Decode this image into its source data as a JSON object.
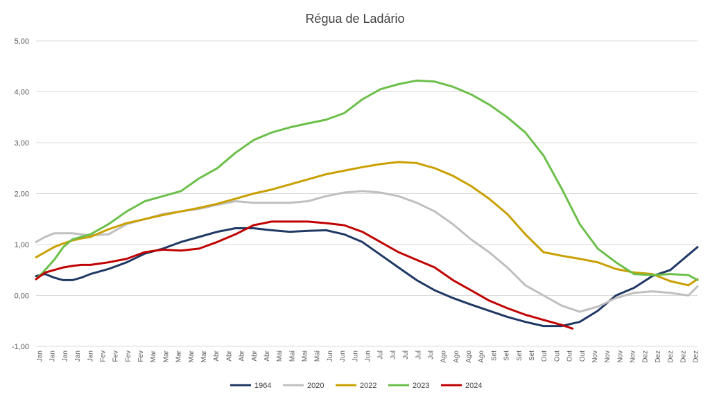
{
  "chart_data": {
    "type": "line",
    "title": "Régua de Ladário",
    "xlabel": "",
    "ylabel": "",
    "ylim": [
      -1,
      5
    ],
    "yticks": [
      "-1,00",
      "0,00",
      "1,00",
      "2,00",
      "3,00",
      "4,00",
      "5,00"
    ],
    "ytick_values": [
      -1,
      0,
      1,
      2,
      3,
      4,
      5
    ],
    "xlim": [
      0,
      365
    ],
    "x_tick_labels": [
      "Jan",
      "Jan",
      "Jan",
      "Jan",
      "Jan",
      "Fev",
      "Fev",
      "Fev",
      "Fev",
      "Mar",
      "Mar",
      "Mar",
      "Mar",
      "Mar",
      "Abr",
      "Abr",
      "Abr",
      "Abr",
      "Abr",
      "Mai",
      "Mai",
      "Mai",
      "Mai",
      "Jun",
      "Jun",
      "Jun",
      "Jun",
      "Jul",
      "Jul",
      "Jul",
      "Jul",
      "Jul",
      "Ago",
      "Ago",
      "Ago",
      "Ago",
      "Set",
      "Set",
      "Set",
      "Set",
      "Out",
      "Out",
      "Out",
      "Out",
      "Nov",
      "Nov",
      "Nov",
      "Nov",
      "Dez",
      "Dez",
      "Dez",
      "Dez",
      "Dez"
    ],
    "grid": true,
    "legend_position": "bottom",
    "series": [
      {
        "name": "1964",
        "color": "#1f3864",
        "x": [
          0,
          5,
          10,
          15,
          20,
          25,
          30,
          40,
          50,
          60,
          70,
          80,
          90,
          100,
          110,
          120,
          130,
          140,
          150,
          160,
          170,
          180,
          190,
          200,
          210,
          220,
          230,
          240,
          250,
          260,
          270,
          280,
          290,
          300,
          310,
          320,
          330,
          340,
          350,
          360,
          365
        ],
        "values": [
          0.38,
          0.42,
          0.35,
          0.3,
          0.3,
          0.35,
          0.42,
          0.52,
          0.65,
          0.82,
          0.92,
          1.05,
          1.15,
          1.25,
          1.32,
          1.32,
          1.28,
          1.25,
          1.27,
          1.28,
          1.2,
          1.05,
          0.8,
          0.55,
          0.3,
          0.1,
          -0.05,
          -0.18,
          -0.3,
          -0.42,
          -0.52,
          -0.6,
          -0.6,
          -0.52,
          -0.3,
          0.0,
          0.15,
          0.38,
          0.5,
          0.8,
          0.95
        ]
      },
      {
        "name": "2020",
        "color": "#bfbfbf",
        "x": [
          0,
          5,
          10,
          15,
          20,
          25,
          30,
          40,
          50,
          60,
          70,
          80,
          90,
          100,
          110,
          120,
          130,
          140,
          150,
          160,
          170,
          180,
          190,
          200,
          210,
          220,
          230,
          240,
          250,
          260,
          270,
          280,
          290,
          300,
          310,
          320,
          330,
          340,
          350,
          360,
          365
        ],
        "values": [
          1.05,
          1.15,
          1.22,
          1.22,
          1.22,
          1.2,
          1.18,
          1.2,
          1.4,
          1.5,
          1.6,
          1.65,
          1.7,
          1.78,
          1.85,
          1.82,
          1.82,
          1.82,
          1.85,
          1.95,
          2.02,
          2.05,
          2.02,
          1.95,
          1.82,
          1.65,
          1.4,
          1.1,
          0.85,
          0.55,
          0.2,
          0.0,
          -0.2,
          -0.32,
          -0.22,
          -0.05,
          0.05,
          0.08,
          0.05,
          0.0,
          0.18
        ]
      },
      {
        "name": "2022",
        "color": "#c9a000",
        "x": [
          0,
          5,
          10,
          15,
          20,
          25,
          30,
          40,
          50,
          60,
          70,
          80,
          90,
          100,
          110,
          120,
          130,
          140,
          150,
          160,
          170,
          180,
          190,
          200,
          210,
          220,
          230,
          240,
          250,
          260,
          270,
          280,
          290,
          300,
          310,
          320,
          330,
          340,
          350,
          360,
          365
        ],
        "values": [
          0.75,
          0.85,
          0.95,
          1.02,
          1.08,
          1.12,
          1.15,
          1.3,
          1.42,
          1.5,
          1.58,
          1.65,
          1.72,
          1.8,
          1.9,
          2.0,
          2.08,
          2.18,
          2.28,
          2.38,
          2.45,
          2.52,
          2.58,
          2.62,
          2.6,
          2.5,
          2.35,
          2.15,
          1.9,
          1.6,
          1.2,
          0.85,
          0.78,
          0.72,
          0.65,
          0.52,
          0.45,
          0.42,
          0.28,
          0.2,
          0.32
        ]
      },
      {
        "name": "2023",
        "color": "#6cbf4a",
        "x": [
          0,
          5,
          10,
          15,
          20,
          25,
          30,
          40,
          50,
          60,
          70,
          80,
          90,
          100,
          110,
          120,
          130,
          140,
          150,
          160,
          170,
          180,
          190,
          200,
          210,
          220,
          230,
          240,
          250,
          260,
          270,
          280,
          290,
          300,
          310,
          320,
          330,
          340,
          350,
          360,
          365
        ],
        "values": [
          0.32,
          0.5,
          0.7,
          0.95,
          1.1,
          1.15,
          1.2,
          1.4,
          1.65,
          1.85,
          1.95,
          2.05,
          2.3,
          2.5,
          2.8,
          3.05,
          3.2,
          3.3,
          3.38,
          3.45,
          3.58,
          3.85,
          4.05,
          4.15,
          4.22,
          4.2,
          4.1,
          3.95,
          3.75,
          3.5,
          3.2,
          2.75,
          2.1,
          1.4,
          0.92,
          0.65,
          0.42,
          0.4,
          0.42,
          0.4,
          0.3
        ]
      },
      {
        "name": "2024",
        "color": "#c00000",
        "x": [
          0,
          5,
          10,
          15,
          20,
          25,
          30,
          40,
          50,
          60,
          70,
          80,
          90,
          100,
          110,
          120,
          130,
          140,
          150,
          160,
          170,
          180,
          190,
          200,
          210,
          220,
          230,
          240,
          250,
          260,
          270,
          280,
          290,
          296
        ],
        "values": [
          0.32,
          0.45,
          0.5,
          0.55,
          0.58,
          0.6,
          0.6,
          0.65,
          0.72,
          0.85,
          0.9,
          0.88,
          0.92,
          1.05,
          1.2,
          1.38,
          1.45,
          1.45,
          1.45,
          1.42,
          1.38,
          1.25,
          1.05,
          0.85,
          0.7,
          0.55,
          0.3,
          0.1,
          -0.1,
          -0.25,
          -0.38,
          -0.48,
          -0.58,
          -0.65
        ]
      }
    ]
  }
}
